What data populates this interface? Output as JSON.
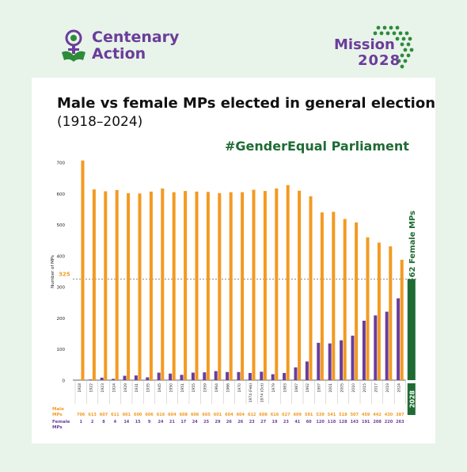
{
  "branding": {
    "centenary_line1": "Centenary",
    "centenary_line2": "Action",
    "mission_word": "Mission",
    "mission_year": "2028",
    "logo_purple": "#6a3d9a",
    "logo_green": "#2e8b3a"
  },
  "header": {
    "title": "Male vs female MPs elected in general elections",
    "subtitle": "(1918–2024)",
    "hashtag": "#GenderEqual Parliament"
  },
  "colors": {
    "male": "#f39a21",
    "female": "#6a3d9a",
    "target": "#1f6b34",
    "background": "#e8f3ea",
    "card": "#ffffff"
  },
  "chart_data": {
    "type": "bar",
    "ylabel": "Number of MPs",
    "ylim": [
      0,
      700
    ],
    "yticks": [
      0,
      100,
      200,
      300,
      400,
      500,
      600,
      700
    ],
    "reference_line": {
      "value": 325,
      "label": "325"
    },
    "categories": [
      "1918",
      "1922",
      "1923",
      "1924",
      "1929",
      "1931",
      "1935",
      "1945",
      "1950",
      "1951",
      "1955",
      "1959",
      "1964",
      "1966",
      "1970",
      "1974 (Feb)",
      "1974 (Oct)",
      "1979",
      "1983",
      "1987",
      "1992",
      "1997",
      "2001",
      "2005",
      "2010",
      "2015",
      "2017",
      "2019",
      "2024"
    ],
    "series": [
      {
        "name": "Male MPs",
        "values": [
          706,
          613,
          607,
          611,
          601,
          600,
          606,
          616,
          604,
          608,
          606,
          605,
          601,
          604,
          604,
          612,
          608,
          616,
          627,
          609,
          591,
          539,
          541,
          518,
          507,
          459,
          442,
          430,
          387
        ]
      },
      {
        "name": "Female MPs",
        "values": [
          1,
          2,
          8,
          4,
          14,
          15,
          9,
          24,
          21,
          17,
          24,
          25,
          29,
          26,
          26,
          23,
          27,
          19,
          23,
          41,
          60,
          120,
          118,
          128,
          143,
          191,
          208,
          220,
          263
        ]
      }
    ],
    "row_labels": {
      "male": "Male MPs",
      "female": "Female MPs"
    },
    "target_bar": {
      "category": "2028",
      "value": 325,
      "label": "+62 Female MPs"
    }
  }
}
